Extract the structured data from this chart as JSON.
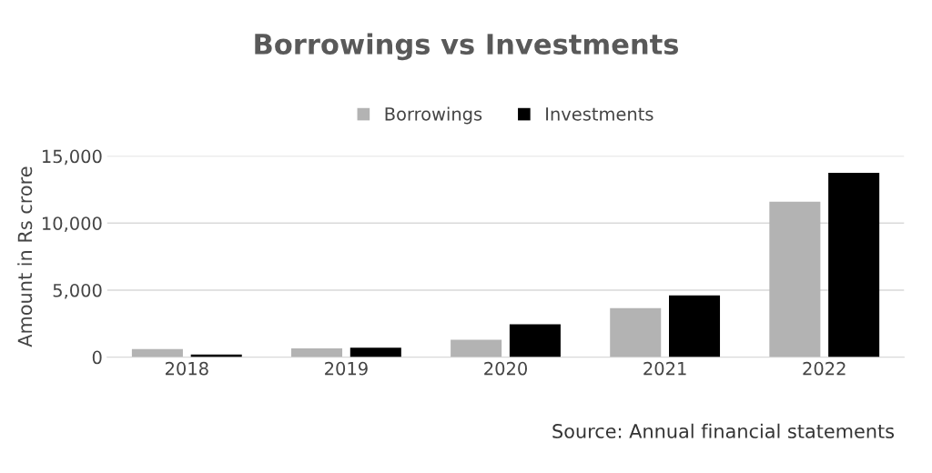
{
  "chart_data": {
    "type": "bar",
    "title": "Borrowings vs Investments",
    "ylabel": "Amount in Rs crore",
    "categories": [
      "2018",
      "2019",
      "2020",
      "2021",
      "2022"
    ],
    "series": [
      {
        "name": "Borrowings",
        "color": "#b3b3b3",
        "values": [
          600,
          650,
          1300,
          3650,
          11600
        ]
      },
      {
        "name": "Investments",
        "color": "#000000",
        "values": [
          200,
          700,
          2450,
          4600,
          13750
        ]
      }
    ],
    "ylim": [
      0,
      15000
    ],
    "yticks": [
      {
        "value": 0,
        "label": "0"
      },
      {
        "value": 5000,
        "label": "5,000"
      },
      {
        "value": 10000,
        "label": "10,000"
      },
      {
        "value": 15000,
        "label": "15,000"
      }
    ],
    "grid": "y",
    "legend": "top",
    "annotations": [
      "Source: Annual financial statements"
    ]
  }
}
